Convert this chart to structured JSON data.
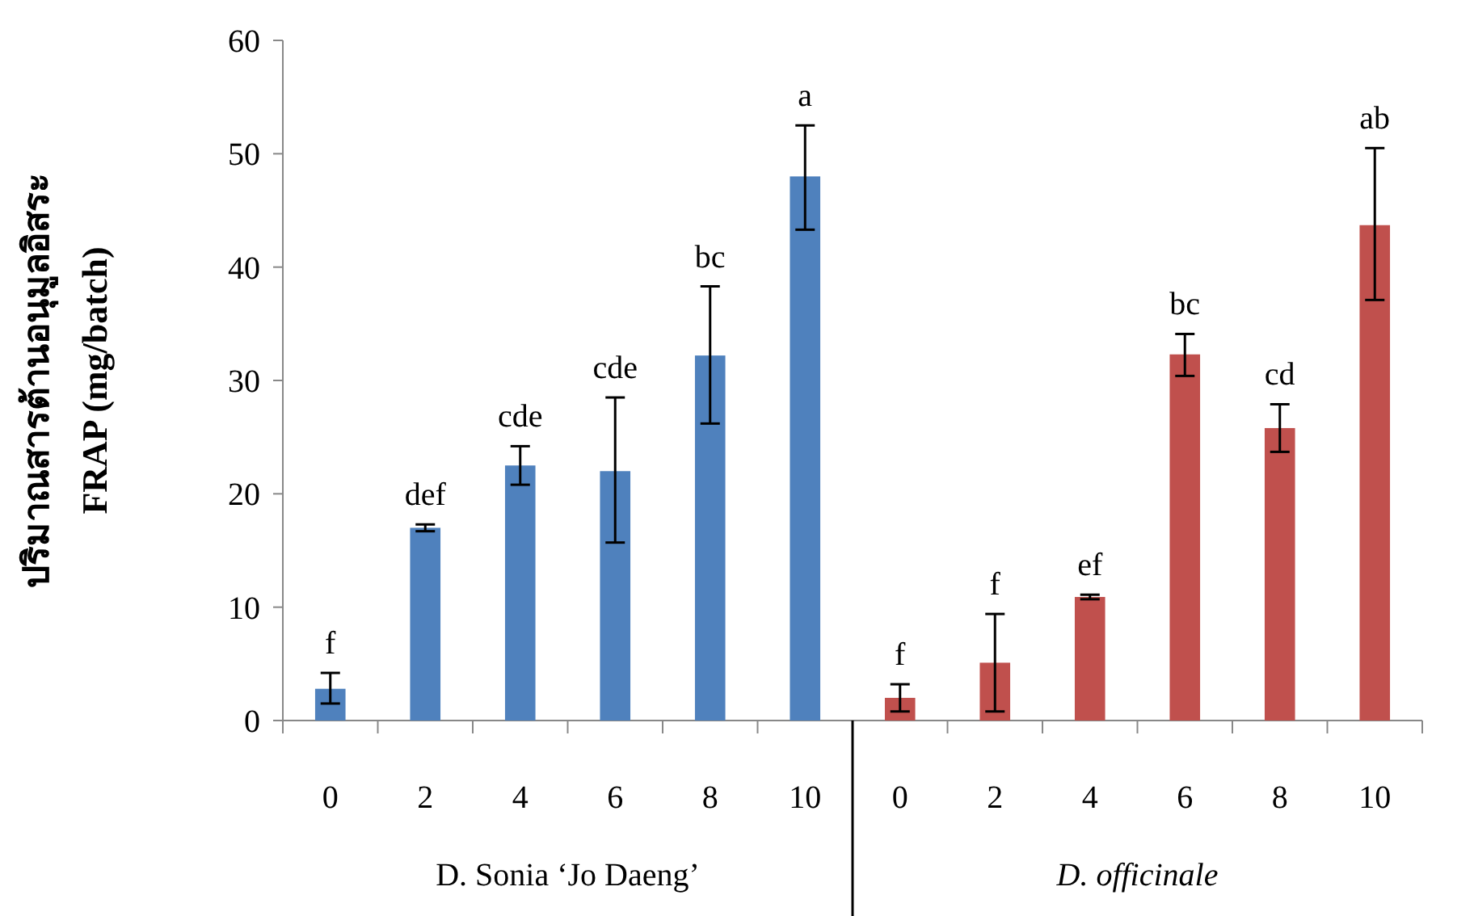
{
  "chart_data": {
    "type": "bar",
    "ylabel": "ปริมาณสารต้านอนุมูลอิสระ\nFRAP (mg/batch)",
    "categories": [
      "0",
      "2",
      "4",
      "6",
      "8",
      "10",
      "0",
      "2",
      "4",
      "6",
      "8",
      "10"
    ],
    "series": [
      {
        "color": "#4f81bd",
        "values": [
          2.8,
          17.0,
          22.5,
          22.0,
          32.2,
          48.0,
          null,
          null,
          null,
          null,
          null,
          null
        ],
        "errors": [
          [
            1.5,
            4.2
          ],
          [
            16.7,
            17.3
          ],
          [
            20.8,
            24.2
          ],
          [
            15.7,
            28.5
          ],
          [
            26.2,
            38.3
          ],
          [
            43.3,
            52.5
          ],
          null,
          null,
          null,
          null,
          null,
          null
        ],
        "value_labels": [
          "f",
          "def",
          "cde",
          "cde",
          "bc",
          "a",
          null,
          null,
          null,
          null,
          null,
          null
        ]
      },
      {
        "color": "#c0504d",
        "values": [
          null,
          null,
          null,
          null,
          null,
          null,
          2.0,
          5.1,
          10.9,
          32.3,
          25.8,
          43.7
        ],
        "errors": [
          null,
          null,
          null,
          null,
          null,
          null,
          [
            0.8,
            3.2
          ],
          [
            0.8,
            9.4
          ],
          [
            10.7,
            11.1
          ],
          [
            30.4,
            34.1
          ],
          [
            23.7,
            27.9
          ],
          [
            37.1,
            50.5
          ]
        ],
        "value_labels": [
          null,
          null,
          null,
          null,
          null,
          null,
          "f",
          "f",
          "ef",
          "bc",
          "cd",
          "ab"
        ]
      }
    ],
    "annotations": [
      "D. Sonia ‘Jo Daeng’",
      "D. officinale"
    ],
    "ylim": [
      0,
      60
    ],
    "yticks": [
      0,
      10,
      20,
      30,
      40,
      50,
      60
    ],
    "grid": false
  }
}
